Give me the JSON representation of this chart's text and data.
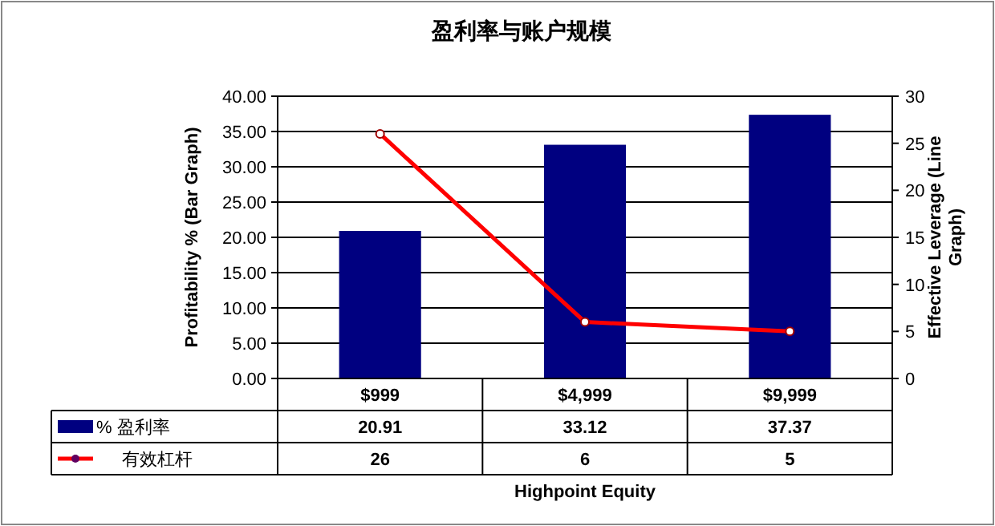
{
  "chart_data": {
    "type": "bar",
    "title": "盈利率与账户规模",
    "xlabel": "Highpoint Equity",
    "ylabel": "Profitability % (Bar Graph)",
    "y2label": "Effective Leverage (Line Graph)",
    "categories": [
      "$999",
      "$4,999",
      "$9,999"
    ],
    "series": [
      {
        "name": "% 盈利率",
        "color": "#000080",
        "values": [
          20.91,
          33.12,
          37.37
        ]
      },
      {
        "name": "有效杠杆",
        "type": "line",
        "axis": "y2",
        "color": "#ff0000",
        "values": [
          26,
          6,
          5
        ],
        "marker": "circle"
      }
    ],
    "ylim": [
      0,
      40
    ],
    "yticks": [
      {
        "value": 0,
        "label": "0.00"
      },
      {
        "value": 5,
        "label": "5.00"
      },
      {
        "value": 10,
        "label": "10.00"
      },
      {
        "value": 15,
        "label": "15.00"
      },
      {
        "value": 20,
        "label": "20.00"
      },
      {
        "value": 25,
        "label": "25.00"
      },
      {
        "value": 30,
        "label": "30.00"
      },
      {
        "value": 35,
        "label": "35.00"
      },
      {
        "value": 40,
        "label": "40.00"
      }
    ],
    "y2lim": [
      0,
      30
    ],
    "y2ticks": [
      0,
      5,
      10,
      15,
      20,
      25,
      30
    ],
    "grid": "y",
    "legend": "bottom",
    "data_labels": true
  }
}
